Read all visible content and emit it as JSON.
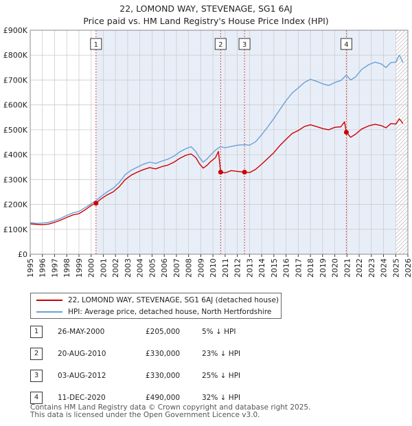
{
  "title_line1": "22, LOMOND WAY, STEVENAGE, SG1 6AJ",
  "title_line2": "Price paid vs. HM Land Registry's House Price Index (HPI)",
  "chart_data": {
    "type": "line",
    "title": "22, LOMOND WAY, STEVENAGE, SG1 6AJ — Price paid vs. HM Land Registry's House Price Index (HPI)",
    "xlim": [
      1995,
      2026
    ],
    "ylim": [
      0,
      900000
    ],
    "y_ticks": [
      {
        "value": 0,
        "label": "£0"
      },
      {
        "value": 100000,
        "label": "£100K"
      },
      {
        "value": 200000,
        "label": "£200K"
      },
      {
        "value": 300000,
        "label": "£300K"
      },
      {
        "value": 400000,
        "label": "£400K"
      },
      {
        "value": 500000,
        "label": "£500K"
      },
      {
        "value": 600000,
        "label": "£600K"
      },
      {
        "value": 700000,
        "label": "£700K"
      },
      {
        "value": 800000,
        "label": "£800K"
      },
      {
        "value": 900000,
        "label": "£900K"
      }
    ],
    "x_ticks": [
      "1995",
      "1996",
      "1997",
      "1998",
      "1999",
      "2000",
      "2001",
      "2002",
      "2003",
      "2004",
      "2005",
      "2006",
      "2007",
      "2008",
      "2009",
      "2010",
      "2011",
      "2012",
      "2013",
      "2014",
      "2015",
      "2016",
      "2017",
      "2018",
      "2019",
      "2020",
      "2021",
      "2022",
      "2023",
      "2024",
      "2025",
      "2026"
    ],
    "shaded_from": 2000.4,
    "hatched_from": 2025.0,
    "series": [
      {
        "name": "22, LOMOND WAY, STEVENAGE, SG1 6AJ (detached house)",
        "color": "#cc0000",
        "points": [
          [
            1995.0,
            122000
          ],
          [
            1995.5,
            120000
          ],
          [
            1996.0,
            119000
          ],
          [
            1996.5,
            121000
          ],
          [
            1997.0,
            128000
          ],
          [
            1997.5,
            137000
          ],
          [
            1998.0,
            148000
          ],
          [
            1998.5,
            158000
          ],
          [
            1999.0,
            163000
          ],
          [
            1999.5,
            178000
          ],
          [
            2000.0,
            196000
          ],
          [
            2000.4,
            205000
          ],
          [
            2000.8,
            222000
          ],
          [
            2001.3,
            238000
          ],
          [
            2001.8,
            250000
          ],
          [
            2002.3,
            271000
          ],
          [
            2002.8,
            300000
          ],
          [
            2003.3,
            318000
          ],
          [
            2003.8,
            330000
          ],
          [
            2004.3,
            340000
          ],
          [
            2004.8,
            348000
          ],
          [
            2005.3,
            343000
          ],
          [
            2005.8,
            352000
          ],
          [
            2006.3,
            358000
          ],
          [
            2006.8,
            370000
          ],
          [
            2007.3,
            386000
          ],
          [
            2007.8,
            398000
          ],
          [
            2008.2,
            403000
          ],
          [
            2008.6,
            388000
          ],
          [
            2008.9,
            363000
          ],
          [
            2009.2,
            346000
          ],
          [
            2009.5,
            357000
          ],
          [
            2009.8,
            372000
          ],
          [
            2010.2,
            388000
          ],
          [
            2010.45,
            413000
          ],
          [
            2010.63,
            330000
          ],
          [
            2011.0,
            327000
          ],
          [
            2011.5,
            336000
          ],
          [
            2012.0,
            333000
          ],
          [
            2012.59,
            330000
          ],
          [
            2013.0,
            328000
          ],
          [
            2013.5,
            341000
          ],
          [
            2014.0,
            362000
          ],
          [
            2014.5,
            385000
          ],
          [
            2015.0,
            408000
          ],
          [
            2015.5,
            437000
          ],
          [
            2016.0,
            462000
          ],
          [
            2016.5,
            485000
          ],
          [
            2017.0,
            497000
          ],
          [
            2017.5,
            513000
          ],
          [
            2018.0,
            520000
          ],
          [
            2018.5,
            513000
          ],
          [
            2019.0,
            505000
          ],
          [
            2019.5,
            500000
          ],
          [
            2020.0,
            510000
          ],
          [
            2020.5,
            512000
          ],
          [
            2020.8,
            532000
          ],
          [
            2020.95,
            490000
          ],
          [
            2021.3,
            470000
          ],
          [
            2021.7,
            482000
          ],
          [
            2022.2,
            503000
          ],
          [
            2022.8,
            516000
          ],
          [
            2023.3,
            522000
          ],
          [
            2023.8,
            517000
          ],
          [
            2024.2,
            508000
          ],
          [
            2024.6,
            525000
          ],
          [
            2025.0,
            523000
          ],
          [
            2025.3,
            544000
          ],
          [
            2025.6,
            525000
          ]
        ]
      },
      {
        "name": "HPI: Average price, detached house, North Hertfordshire",
        "color": "#6a9fd4",
        "points": [
          [
            1995.0,
            127000
          ],
          [
            1995.5,
            124000
          ],
          [
            1996.0,
            125000
          ],
          [
            1996.5,
            128000
          ],
          [
            1997.0,
            135000
          ],
          [
            1997.5,
            144000
          ],
          [
            1998.0,
            156000
          ],
          [
            1998.5,
            166000
          ],
          [
            1999.0,
            172000
          ],
          [
            1999.5,
            187000
          ],
          [
            2000.0,
            203000
          ],
          [
            2000.4,
            215000
          ],
          [
            2000.8,
            232000
          ],
          [
            2001.3,
            250000
          ],
          [
            2001.8,
            265000
          ],
          [
            2002.3,
            288000
          ],
          [
            2002.8,
            320000
          ],
          [
            2003.3,
            338000
          ],
          [
            2003.8,
            350000
          ],
          [
            2004.3,
            362000
          ],
          [
            2004.8,
            370000
          ],
          [
            2005.3,
            365000
          ],
          [
            2005.8,
            374000
          ],
          [
            2006.3,
            382000
          ],
          [
            2006.8,
            394000
          ],
          [
            2007.3,
            412000
          ],
          [
            2007.8,
            425000
          ],
          [
            2008.2,
            432000
          ],
          [
            2008.6,
            412000
          ],
          [
            2008.9,
            388000
          ],
          [
            2009.2,
            370000
          ],
          [
            2009.5,
            382000
          ],
          [
            2009.8,
            398000
          ],
          [
            2010.2,
            418000
          ],
          [
            2010.6,
            432000
          ],
          [
            2011.0,
            428000
          ],
          [
            2011.5,
            433000
          ],
          [
            2012.0,
            438000
          ],
          [
            2012.6,
            440000
          ],
          [
            2013.0,
            438000
          ],
          [
            2013.5,
            452000
          ],
          [
            2014.0,
            480000
          ],
          [
            2014.5,
            512000
          ],
          [
            2015.0,
            545000
          ],
          [
            2015.5,
            582000
          ],
          [
            2016.0,
            617000
          ],
          [
            2016.5,
            648000
          ],
          [
            2017.0,
            668000
          ],
          [
            2017.5,
            690000
          ],
          [
            2018.0,
            703000
          ],
          [
            2018.5,
            695000
          ],
          [
            2019.0,
            685000
          ],
          [
            2019.5,
            678000
          ],
          [
            2020.0,
            690000
          ],
          [
            2020.5,
            698000
          ],
          [
            2020.95,
            720000
          ],
          [
            2021.3,
            700000
          ],
          [
            2021.7,
            712000
          ],
          [
            2022.2,
            742000
          ],
          [
            2022.8,
            762000
          ],
          [
            2023.3,
            772000
          ],
          [
            2023.8,
            765000
          ],
          [
            2024.2,
            750000
          ],
          [
            2024.6,
            770000
          ],
          [
            2025.0,
            772000
          ],
          [
            2025.3,
            800000
          ],
          [
            2025.6,
            770000
          ]
        ]
      }
    ],
    "sales": [
      {
        "label": "1",
        "year": 2000.4,
        "price": 205000
      },
      {
        "label": "2",
        "year": 2010.63,
        "price": 330000
      },
      {
        "label": "3",
        "year": 2012.59,
        "price": 330000
      },
      {
        "label": "4",
        "year": 2020.95,
        "price": 490000
      }
    ]
  },
  "legend": {
    "property": "22, LOMOND WAY, STEVENAGE, SG1 6AJ (detached house)",
    "hpi": "HPI: Average price, detached house, North Hertfordshire"
  },
  "sales_table": [
    {
      "num": "1",
      "date": "26-MAY-2000",
      "price": "£205,000",
      "hpi": "5% ↓ HPI"
    },
    {
      "num": "2",
      "date": "20-AUG-2010",
      "price": "£330,000",
      "hpi": "23% ↓ HPI"
    },
    {
      "num": "3",
      "date": "03-AUG-2012",
      "price": "£330,000",
      "hpi": "25% ↓ HPI"
    },
    {
      "num": "4",
      "date": "11-DEC-2020",
      "price": "£490,000",
      "hpi": "32% ↓ HPI"
    }
  ],
  "footer": {
    "line1": "Contains HM Land Registry data © Crown copyright and database right 2025.",
    "line2": "This data is licensed under the Open Government Licence v3.0."
  },
  "colors": {
    "property": "#cc0000",
    "hpi": "#6a9fd4",
    "shade": "#e8eef8",
    "grid": "#cccccc",
    "marker_line": "#dd4444"
  }
}
